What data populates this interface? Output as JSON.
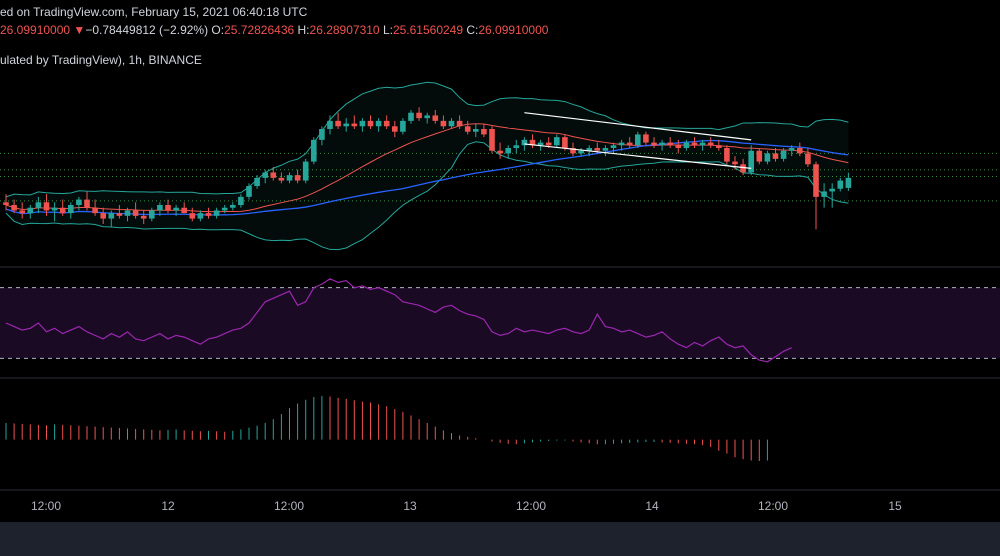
{
  "header": {
    "published": "ed on TradingView.com, February 15, 2021 06:40:18 UTC",
    "last_price": "26.09910000",
    "change_arrow": "▼",
    "change": "−0.78449812 (−2.92%)",
    "open_label": "O:",
    "open": "25.72826436",
    "high_label": "H:",
    "high": "26.28907310",
    "low_label": "L:",
    "low": "25.61560249",
    "close_label": "C:",
    "close": "26.09910000",
    "symbol_line": "ulated by TradingView), 1h, BINANCE"
  },
  "colors": {
    "up": "#26a69a",
    "down": "#ef5350",
    "background": "#000000",
    "bb_band": "#26a69a",
    "sma_red": "#ef5350",
    "sma_blue": "#2962ff",
    "rsi_line": "#9c27b0",
    "rsi_fill": "#1a0a24",
    "grid_dotted": "#4caf50",
    "trendline": "#ffffff"
  },
  "x_axis": {
    "ticks": [
      "12:00",
      "12",
      "12:00",
      "13",
      "12:00",
      "14",
      "12:00",
      "15"
    ]
  },
  "chart_data": {
    "type": "candlestick",
    "timeframe": "1h",
    "exchange": "BINANCE",
    "price_panel": {
      "candles": [
        {
          "o": 25.2,
          "h": 25.5,
          "l": 24.9,
          "c": 25.1
        },
        {
          "o": 25.1,
          "h": 25.3,
          "l": 24.8,
          "c": 24.9
        },
        {
          "o": 24.9,
          "h": 25.2,
          "l": 24.6,
          "c": 24.8
        },
        {
          "o": 24.8,
          "h": 25.1,
          "l": 24.6,
          "c": 25.0
        },
        {
          "o": 25.0,
          "h": 25.4,
          "l": 24.8,
          "c": 25.2
        },
        {
          "o": 25.2,
          "h": 25.5,
          "l": 24.7,
          "c": 24.9
        },
        {
          "o": 24.9,
          "h": 25.2,
          "l": 24.5,
          "c": 25.0
        },
        {
          "o": 25.0,
          "h": 25.3,
          "l": 24.7,
          "c": 24.8
        },
        {
          "o": 24.8,
          "h": 25.2,
          "l": 24.6,
          "c": 25.1
        },
        {
          "o": 25.1,
          "h": 25.4,
          "l": 24.9,
          "c": 25.3
        },
        {
          "o": 25.3,
          "h": 25.6,
          "l": 24.9,
          "c": 25.0
        },
        {
          "o": 25.0,
          "h": 25.3,
          "l": 24.7,
          "c": 24.8
        },
        {
          "o": 24.8,
          "h": 25.0,
          "l": 24.4,
          "c": 24.6
        },
        {
          "o": 24.6,
          "h": 24.9,
          "l": 24.3,
          "c": 24.8
        },
        {
          "o": 24.8,
          "h": 25.1,
          "l": 24.6,
          "c": 24.7
        },
        {
          "o": 24.7,
          "h": 25.0,
          "l": 24.5,
          "c": 24.9
        },
        {
          "o": 24.9,
          "h": 25.2,
          "l": 24.6,
          "c": 24.7
        },
        {
          "o": 24.7,
          "h": 24.9,
          "l": 24.4,
          "c": 24.6
        },
        {
          "o": 24.6,
          "h": 25.0,
          "l": 24.5,
          "c": 24.9
        },
        {
          "o": 24.9,
          "h": 25.2,
          "l": 24.7,
          "c": 25.1
        },
        {
          "o": 25.1,
          "h": 25.3,
          "l": 24.8,
          "c": 24.9
        },
        {
          "o": 24.9,
          "h": 25.1,
          "l": 24.7,
          "c": 25.0
        },
        {
          "o": 25.0,
          "h": 25.2,
          "l": 24.8,
          "c": 24.8
        },
        {
          "o": 24.8,
          "h": 25.0,
          "l": 24.5,
          "c": 24.6
        },
        {
          "o": 24.6,
          "h": 24.9,
          "l": 24.5,
          "c": 24.8
        },
        {
          "o": 24.8,
          "h": 25.0,
          "l": 24.6,
          "c": 24.7
        },
        {
          "o": 24.7,
          "h": 25.0,
          "l": 24.6,
          "c": 24.9
        },
        {
          "o": 24.9,
          "h": 25.1,
          "l": 24.8,
          "c": 25.0
        },
        {
          "o": 25.0,
          "h": 25.2,
          "l": 24.9,
          "c": 25.1
        },
        {
          "o": 25.1,
          "h": 25.5,
          "l": 25.0,
          "c": 25.4
        },
        {
          "o": 25.4,
          "h": 25.9,
          "l": 25.3,
          "c": 25.8
        },
        {
          "o": 25.8,
          "h": 26.2,
          "l": 25.7,
          "c": 26.1
        },
        {
          "o": 26.1,
          "h": 26.4,
          "l": 25.9,
          "c": 26.3
        },
        {
          "o": 26.3,
          "h": 26.5,
          "l": 26.0,
          "c": 26.1
        },
        {
          "o": 26.1,
          "h": 26.3,
          "l": 25.9,
          "c": 26.0
        },
        {
          "o": 26.0,
          "h": 26.3,
          "l": 25.9,
          "c": 26.2
        },
        {
          "o": 26.2,
          "h": 26.4,
          "l": 25.9,
          "c": 26.0
        },
        {
          "o": 26.0,
          "h": 26.8,
          "l": 25.9,
          "c": 26.7
        },
        {
          "o": 26.7,
          "h": 27.6,
          "l": 26.6,
          "c": 27.5
        },
        {
          "o": 27.5,
          "h": 28.0,
          "l": 27.3,
          "c": 27.9
        },
        {
          "o": 27.9,
          "h": 28.4,
          "l": 27.7,
          "c": 28.2
        },
        {
          "o": 28.2,
          "h": 28.5,
          "l": 27.9,
          "c": 28.0
        },
        {
          "o": 28.0,
          "h": 28.3,
          "l": 27.8,
          "c": 28.1
        },
        {
          "o": 28.1,
          "h": 28.4,
          "l": 27.9,
          "c": 28.0
        },
        {
          "o": 28.0,
          "h": 28.3,
          "l": 27.8,
          "c": 28.2
        },
        {
          "o": 28.2,
          "h": 28.4,
          "l": 27.9,
          "c": 28.0
        },
        {
          "o": 28.0,
          "h": 28.3,
          "l": 27.8,
          "c": 28.2
        },
        {
          "o": 28.2,
          "h": 28.4,
          "l": 27.9,
          "c": 28.0
        },
        {
          "o": 28.0,
          "h": 28.2,
          "l": 27.6,
          "c": 27.8
        },
        {
          "o": 27.8,
          "h": 28.3,
          "l": 27.7,
          "c": 28.2
        },
        {
          "o": 28.2,
          "h": 28.6,
          "l": 28.1,
          "c": 28.5
        },
        {
          "o": 28.5,
          "h": 28.7,
          "l": 28.2,
          "c": 28.3
        },
        {
          "o": 28.3,
          "h": 28.5,
          "l": 28.1,
          "c": 28.4
        },
        {
          "o": 28.4,
          "h": 28.6,
          "l": 28.1,
          "c": 28.2
        },
        {
          "o": 28.2,
          "h": 28.4,
          "l": 27.9,
          "c": 28.0
        },
        {
          "o": 28.0,
          "h": 28.3,
          "l": 27.9,
          "c": 28.2
        },
        {
          "o": 28.2,
          "h": 28.4,
          "l": 27.9,
          "c": 28.0
        },
        {
          "o": 28.0,
          "h": 28.2,
          "l": 27.7,
          "c": 27.8
        },
        {
          "o": 27.8,
          "h": 28.1,
          "l": 27.6,
          "c": 27.9
        },
        {
          "o": 27.9,
          "h": 28.1,
          "l": 27.6,
          "c": 27.7
        },
        {
          "o": 27.9,
          "h": 28.0,
          "l": 27.0,
          "c": 27.1
        },
        {
          "o": 27.1,
          "h": 27.4,
          "l": 26.8,
          "c": 27.0
        },
        {
          "o": 27.0,
          "h": 27.3,
          "l": 26.8,
          "c": 27.2
        },
        {
          "o": 27.2,
          "h": 27.5,
          "l": 27.0,
          "c": 27.3
        },
        {
          "o": 27.3,
          "h": 27.6,
          "l": 27.1,
          "c": 27.5
        },
        {
          "o": 27.5,
          "h": 27.7,
          "l": 27.2,
          "c": 27.3
        },
        {
          "o": 27.3,
          "h": 27.5,
          "l": 27.1,
          "c": 27.4
        },
        {
          "o": 27.4,
          "h": 27.6,
          "l": 27.2,
          "c": 27.3
        },
        {
          "o": 27.3,
          "h": 27.7,
          "l": 27.2,
          "c": 27.6
        },
        {
          "o": 27.6,
          "h": 27.7,
          "l": 27.1,
          "c": 27.2
        },
        {
          "o": 27.2,
          "h": 27.4,
          "l": 26.9,
          "c": 27.0
        },
        {
          "o": 27.0,
          "h": 27.2,
          "l": 26.9,
          "c": 27.1
        },
        {
          "o": 27.1,
          "h": 27.3,
          "l": 26.9,
          "c": 27.2
        },
        {
          "o": 27.2,
          "h": 27.4,
          "l": 27.0,
          "c": 27.1
        },
        {
          "o": 27.1,
          "h": 27.3,
          "l": 26.9,
          "c": 27.2
        },
        {
          "o": 27.2,
          "h": 27.4,
          "l": 27.0,
          "c": 27.3
        },
        {
          "o": 27.3,
          "h": 27.5,
          "l": 27.1,
          "c": 27.4
        },
        {
          "o": 27.4,
          "h": 27.6,
          "l": 27.2,
          "c": 27.3
        },
        {
          "o": 27.3,
          "h": 27.8,
          "l": 27.2,
          "c": 27.7
        },
        {
          "o": 27.7,
          "h": 27.8,
          "l": 27.3,
          "c": 27.4
        },
        {
          "o": 27.4,
          "h": 27.6,
          "l": 27.2,
          "c": 27.3
        },
        {
          "o": 27.3,
          "h": 27.5,
          "l": 27.1,
          "c": 27.4
        },
        {
          "o": 27.4,
          "h": 27.6,
          "l": 27.2,
          "c": 27.3
        },
        {
          "o": 27.3,
          "h": 27.5,
          "l": 27.0,
          "c": 27.2
        },
        {
          "o": 27.2,
          "h": 27.5,
          "l": 27.1,
          "c": 27.4
        },
        {
          "o": 27.4,
          "h": 27.6,
          "l": 27.2,
          "c": 27.3
        },
        {
          "o": 27.3,
          "h": 27.5,
          "l": 27.1,
          "c": 27.4
        },
        {
          "o": 27.4,
          "h": 27.6,
          "l": 27.2,
          "c": 27.3
        },
        {
          "o": 27.3,
          "h": 27.5,
          "l": 27.1,
          "c": 27.2
        },
        {
          "o": 27.2,
          "h": 27.3,
          "l": 26.6,
          "c": 26.7
        },
        {
          "o": 26.7,
          "h": 26.9,
          "l": 26.4,
          "c": 26.6
        },
        {
          "o": 26.6,
          "h": 26.8,
          "l": 26.2,
          "c": 26.3
        },
        {
          "o": 26.3,
          "h": 27.3,
          "l": 26.2,
          "c": 27.1
        },
        {
          "o": 27.1,
          "h": 27.2,
          "l": 26.6,
          "c": 26.7
        },
        {
          "o": 26.7,
          "h": 27.1,
          "l": 26.6,
          "c": 27.0
        },
        {
          "o": 27.0,
          "h": 27.2,
          "l": 26.7,
          "c": 26.8
        },
        {
          "o": 26.8,
          "h": 27.2,
          "l": 26.7,
          "c": 27.1
        },
        {
          "o": 27.1,
          "h": 27.3,
          "l": 26.9,
          "c": 27.2
        },
        {
          "o": 27.2,
          "h": 27.4,
          "l": 26.9,
          "c": 27.0
        },
        {
          "o": 27.0,
          "h": 27.2,
          "l": 26.5,
          "c": 26.6
        },
        {
          "o": 26.6,
          "h": 26.7,
          "l": 24.2,
          "c": 25.4
        },
        {
          "o": 25.4,
          "h": 25.9,
          "l": 25.0,
          "c": 25.6
        },
        {
          "o": 25.6,
          "h": 25.9,
          "l": 25.0,
          "c": 25.7
        },
        {
          "o": 25.7,
          "h": 26.1,
          "l": 25.6,
          "c": 26.0
        },
        {
          "o": 25.73,
          "h": 26.29,
          "l": 25.62,
          "c": 26.1
        }
      ],
      "ylim": [
        23.0,
        30.0
      ],
      "dotted_levels": [
        27.0,
        26.4,
        26.15,
        25.25
      ],
      "indicators": [
        "Bollinger Bands",
        "SMA (red)",
        "SMA (blue)"
      ],
      "trendlines": [
        {
          "from_index": 64,
          "to_index": 92,
          "from": 28.5,
          "to": 27.5
        },
        {
          "from_index": 64,
          "to_index": 92,
          "from": 27.35,
          "to": 26.45
        }
      ]
    },
    "rsi_panel": {
      "upper_band": 70,
      "lower_band": 30,
      "ylim": [
        20,
        80
      ],
      "values": [
        50,
        48,
        46,
        47,
        50,
        45,
        47,
        44,
        46,
        48,
        45,
        43,
        41,
        44,
        42,
        45,
        41,
        40,
        42,
        44,
        41,
        43,
        42,
        40,
        38,
        41,
        42,
        44,
        46,
        47,
        50,
        56,
        62,
        64,
        66,
        68,
        60,
        62,
        70,
        72,
        75,
        73,
        74,
        70,
        71,
        69,
        70,
        68,
        66,
        62,
        61,
        60,
        58,
        56,
        59,
        60,
        57,
        55,
        54,
        52,
        45,
        43,
        44,
        47,
        45,
        46,
        45,
        44,
        46,
        47,
        45,
        44,
        46,
        55,
        48,
        47,
        45,
        46,
        44,
        42,
        43,
        45,
        41,
        38,
        36,
        39,
        37,
        40,
        42,
        38,
        36,
        37,
        32,
        29,
        28,
        31,
        34,
        36
      ]
    },
    "histogram_panel": {
      "ylim": [
        -1.0,
        1.2
      ],
      "values": [
        0.36,
        0.35,
        0.34,
        0.33,
        0.32,
        0.31,
        0.33,
        0.32,
        0.31,
        0.3,
        0.29,
        0.28,
        0.27,
        0.26,
        0.25,
        0.24,
        0.23,
        0.22,
        0.21,
        0.2,
        0.21,
        0.22,
        0.2,
        0.19,
        0.18,
        0.19,
        0.18,
        0.17,
        0.19,
        0.22,
        0.26,
        0.3,
        0.36,
        0.44,
        0.55,
        0.68,
        0.78,
        0.86,
        0.92,
        0.94,
        0.93,
        0.9,
        0.88,
        0.85,
        0.82,
        0.8,
        0.76,
        0.72,
        0.66,
        0.6,
        0.52,
        0.44,
        0.36,
        0.28,
        0.2,
        0.14,
        0.09,
        0.06,
        0.03,
        0.0,
        -0.04,
        -0.07,
        -0.09,
        -0.1,
        -0.08,
        -0.06,
        -0.04,
        -0.03,
        -0.02,
        -0.02,
        -0.04,
        -0.06,
        -0.08,
        -0.1,
        -0.1,
        -0.09,
        -0.08,
        -0.07,
        -0.06,
        -0.05,
        -0.05,
        -0.06,
        -0.07,
        -0.08,
        -0.09,
        -0.1,
        -0.12,
        -0.16,
        -0.24,
        -0.3,
        -0.38,
        -0.42,
        -0.45,
        -0.46,
        -0.45
      ]
    }
  }
}
